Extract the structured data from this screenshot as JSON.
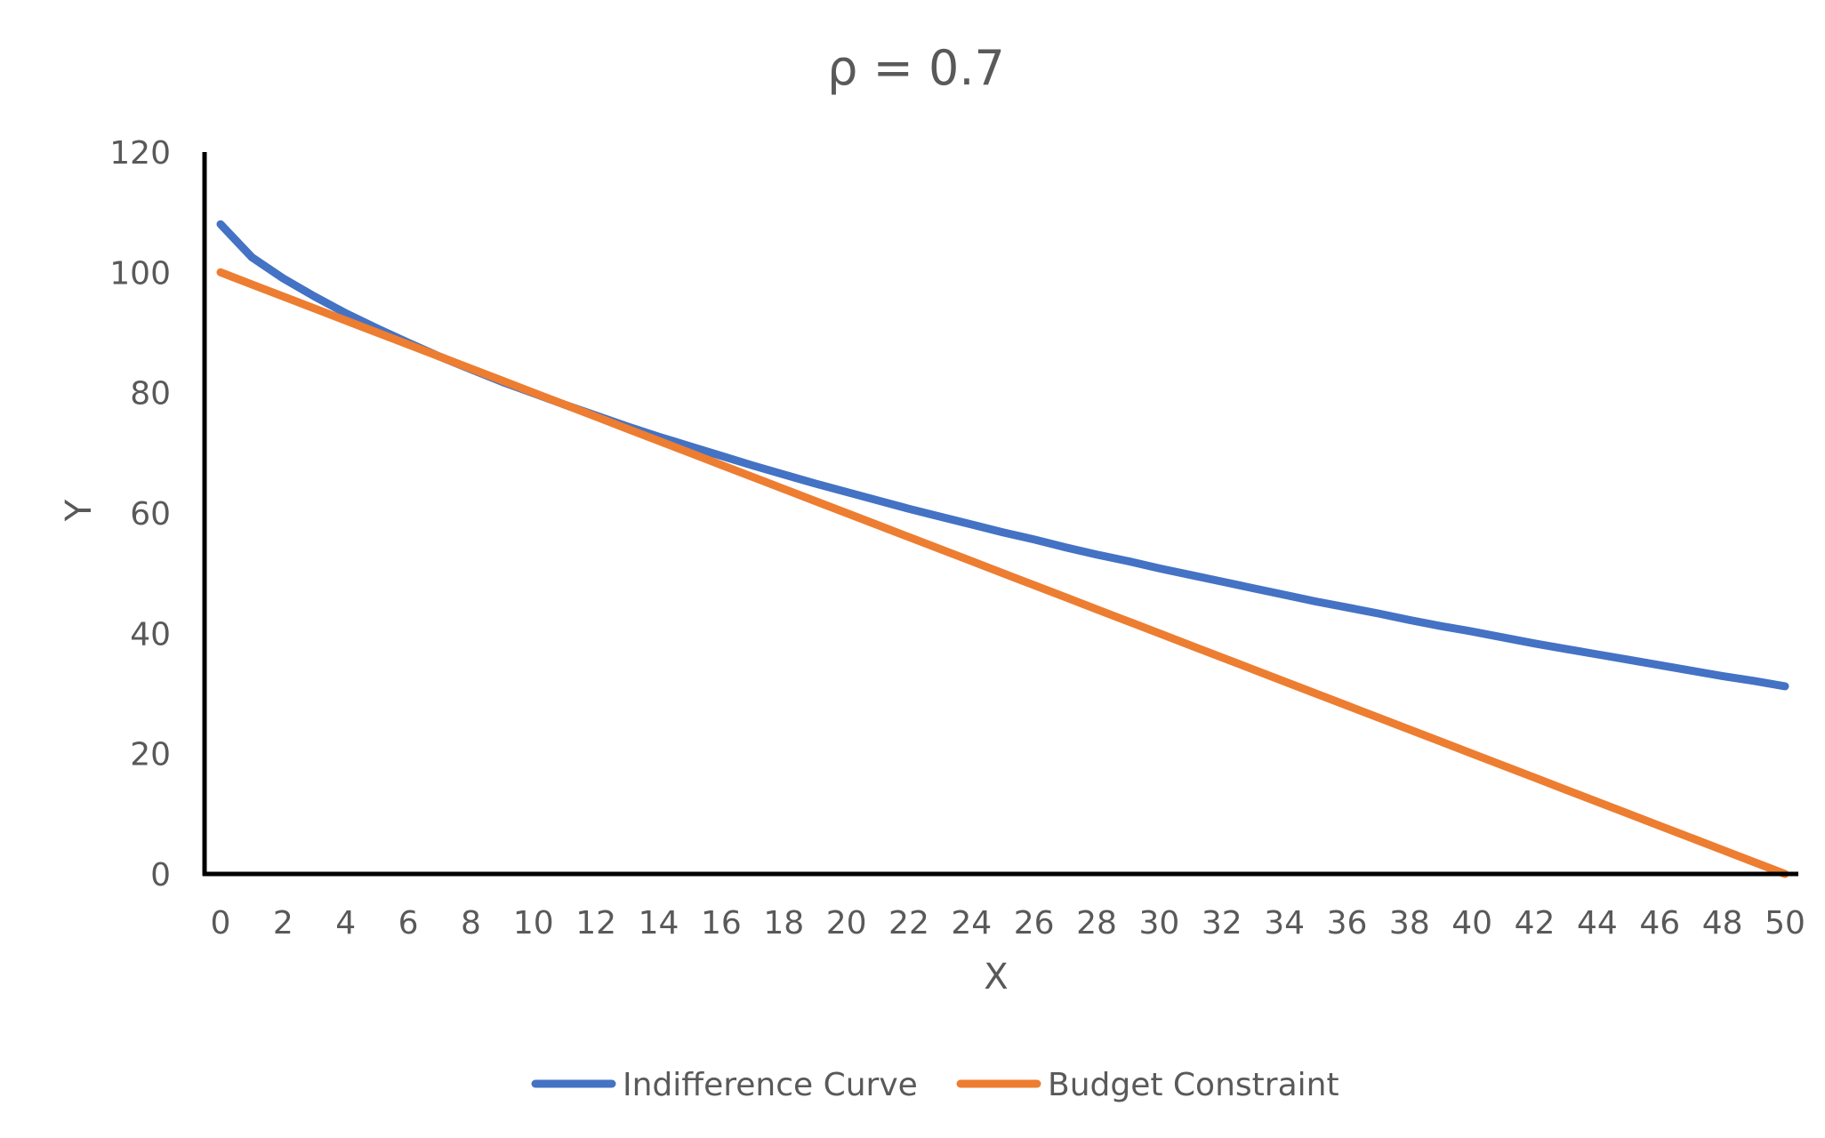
{
  "chart_data": {
    "type": "line",
    "title": "ρ = 0.7",
    "xlabel": "X",
    "ylabel": "Y",
    "xlim": [
      0,
      50
    ],
    "ylim": [
      0,
      120
    ],
    "y_ticks": [
      0,
      20,
      40,
      60,
      80,
      100,
      120
    ],
    "x_ticks": [
      0,
      2,
      4,
      6,
      8,
      10,
      12,
      14,
      16,
      18,
      20,
      22,
      24,
      26,
      28,
      30,
      32,
      34,
      36,
      38,
      40,
      42,
      44,
      46,
      48,
      50
    ],
    "grid": false,
    "legend_position": "bottom",
    "x": [
      0,
      1,
      2,
      3,
      4,
      5,
      6,
      7,
      8,
      9,
      10,
      11,
      12,
      13,
      14,
      15,
      16,
      17,
      18,
      19,
      20,
      21,
      22,
      23,
      24,
      25,
      26,
      27,
      28,
      29,
      30,
      31,
      32,
      33,
      34,
      35,
      36,
      37,
      38,
      39,
      40,
      41,
      42,
      43,
      44,
      45,
      46,
      47,
      48,
      49,
      50
    ],
    "series": [
      {
        "name": "Indifference Curve",
        "color": "#4472C4",
        "values": [
          108,
          102.5,
          99,
          96,
          93.2,
          90.7,
          88.3,
          86,
          83.9,
          81.8,
          79.9,
          78,
          76.2,
          74.4,
          72.7,
          71.1,
          69.5,
          67.9,
          66.4,
          64.9,
          63.5,
          62.1,
          60.7,
          59.4,
          58.1,
          56.8,
          55.6,
          54.3,
          53.1,
          52,
          50.8,
          49.7,
          48.6,
          47.5,
          46.4,
          45.3,
          44.3,
          43.3,
          42.2,
          41.2,
          40.3,
          39.3,
          38.3,
          37.4,
          36.5,
          35.6,
          34.7,
          33.8,
          32.9,
          32.1,
          31.2
        ]
      },
      {
        "name": "Budget Constraint",
        "color": "#ED7D31",
        "values": [
          100,
          98,
          96,
          94,
          92,
          90,
          88,
          86,
          84,
          82,
          80,
          78,
          76,
          74,
          72,
          70,
          68,
          66,
          64,
          62,
          60,
          58,
          56,
          54,
          52,
          50,
          48,
          46,
          44,
          42,
          40,
          38,
          36,
          34,
          32,
          30,
          28,
          26,
          24,
          22,
          20,
          18,
          16,
          14,
          12,
          10,
          8,
          6,
          4,
          2,
          0
        ]
      }
    ]
  }
}
